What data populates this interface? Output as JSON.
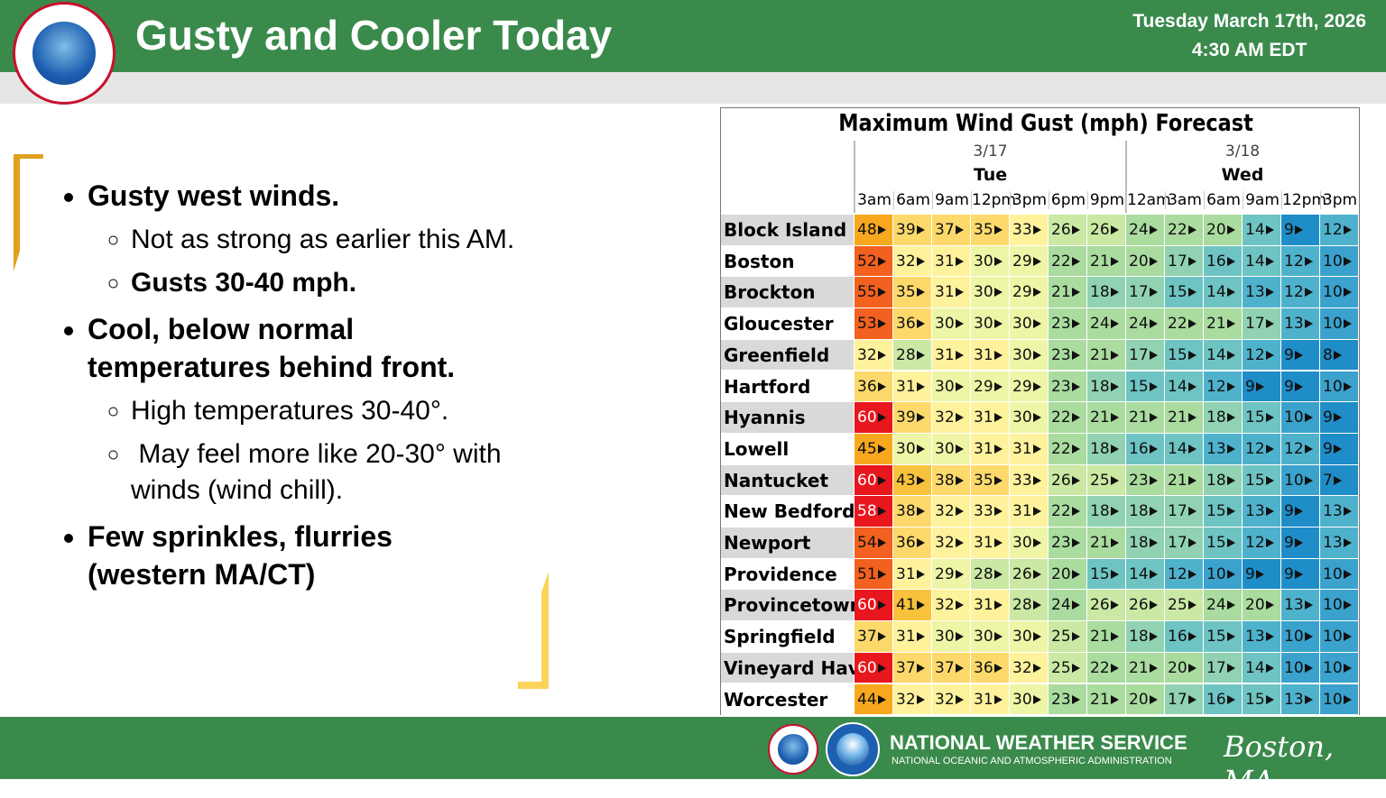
{
  "header": {
    "title": "Gusty and Cooler Today",
    "date": "Tuesday March 17th, 2026",
    "time": "4:30 AM EDT"
  },
  "bullets": [
    {
      "text": "Gusty west winds.",
      "sub": [
        "Not as strong as earlier this AM.",
        "Gusts 30-40 mph."
      ]
    },
    {
      "text": "Cool, below normal temperatures behind front.",
      "sub": [
        "High temperatures 30-40°.",
        " May feel more like 20-30° with winds (wind chill)."
      ]
    },
    {
      "text": "Few sprinkles, flurries (western MA/CT)",
      "sub": []
    }
  ],
  "table": {
    "title": "Maximum Wind Gust (mph) Forecast",
    "days": [
      {
        "date": "3/17",
        "day": "Tue"
      },
      {
        "date": "3/18",
        "day": "Wed"
      }
    ],
    "columns": [
      "3am",
      "6am",
      "9am",
      "12pm",
      "3pm",
      "6pm",
      "9pm",
      "12am",
      "3am",
      "6am",
      "9am",
      "12pm",
      "3pm"
    ],
    "rows": [
      {
        "name": "Block Island",
        "values": [
          48,
          39,
          37,
          35,
          33,
          26,
          26,
          24,
          22,
          20,
          14,
          9,
          12
        ]
      },
      {
        "name": "Boston",
        "values": [
          52,
          32,
          31,
          30,
          29,
          22,
          21,
          20,
          17,
          16,
          14,
          12,
          10
        ]
      },
      {
        "name": "Brockton",
        "values": [
          55,
          35,
          31,
          30,
          29,
          21,
          18,
          17,
          15,
          14,
          13,
          12,
          10
        ]
      },
      {
        "name": "Gloucester",
        "values": [
          53,
          36,
          30,
          30,
          30,
          23,
          24,
          24,
          22,
          21,
          17,
          13,
          10
        ]
      },
      {
        "name": "Greenfield",
        "values": [
          32,
          28,
          31,
          31,
          30,
          23,
          21,
          17,
          15,
          14,
          12,
          9,
          8
        ]
      },
      {
        "name": "Hartford",
        "values": [
          36,
          31,
          30,
          29,
          29,
          23,
          18,
          15,
          14,
          12,
          9,
          9,
          10
        ]
      },
      {
        "name": "Hyannis",
        "values": [
          60,
          39,
          32,
          31,
          30,
          22,
          21,
          21,
          21,
          18,
          15,
          10,
          9
        ]
      },
      {
        "name": "Lowell",
        "values": [
          45,
          30,
          30,
          31,
          31,
          22,
          18,
          16,
          14,
          13,
          12,
          12,
          9
        ]
      },
      {
        "name": "Nantucket",
        "values": [
          60,
          43,
          38,
          35,
          33,
          26,
          25,
          23,
          21,
          18,
          15,
          10,
          7
        ]
      },
      {
        "name": "New Bedford",
        "values": [
          58,
          38,
          32,
          33,
          31,
          22,
          18,
          18,
          17,
          15,
          13,
          9,
          13
        ]
      },
      {
        "name": "Newport",
        "values": [
          54,
          36,
          32,
          31,
          30,
          23,
          21,
          18,
          17,
          15,
          12,
          9,
          13
        ]
      },
      {
        "name": "Providence",
        "values": [
          51,
          31,
          29,
          28,
          26,
          20,
          15,
          14,
          12,
          10,
          9,
          9,
          10
        ]
      },
      {
        "name": "Provincetown",
        "values": [
          60,
          41,
          32,
          31,
          28,
          24,
          26,
          26,
          25,
          24,
          20,
          13,
          10
        ]
      },
      {
        "name": "Springfield",
        "values": [
          37,
          31,
          30,
          30,
          30,
          25,
          21,
          18,
          16,
          15,
          13,
          10,
          10
        ]
      },
      {
        "name": "Vineyard Haven",
        "values": [
          60,
          37,
          37,
          36,
          32,
          25,
          22,
          21,
          20,
          17,
          14,
          10,
          10
        ]
      },
      {
        "name": "Worcester",
        "values": [
          44,
          32,
          32,
          31,
          30,
          23,
          21,
          20,
          17,
          16,
          15,
          13,
          10
        ]
      }
    ]
  },
  "footer": {
    "org": "NATIONAL WEATHER SERVICE",
    "sub": "NATIONAL OCEANIC AND ATMOSPHERIC ADMINISTRATION",
    "office": "Boston, MA"
  }
}
